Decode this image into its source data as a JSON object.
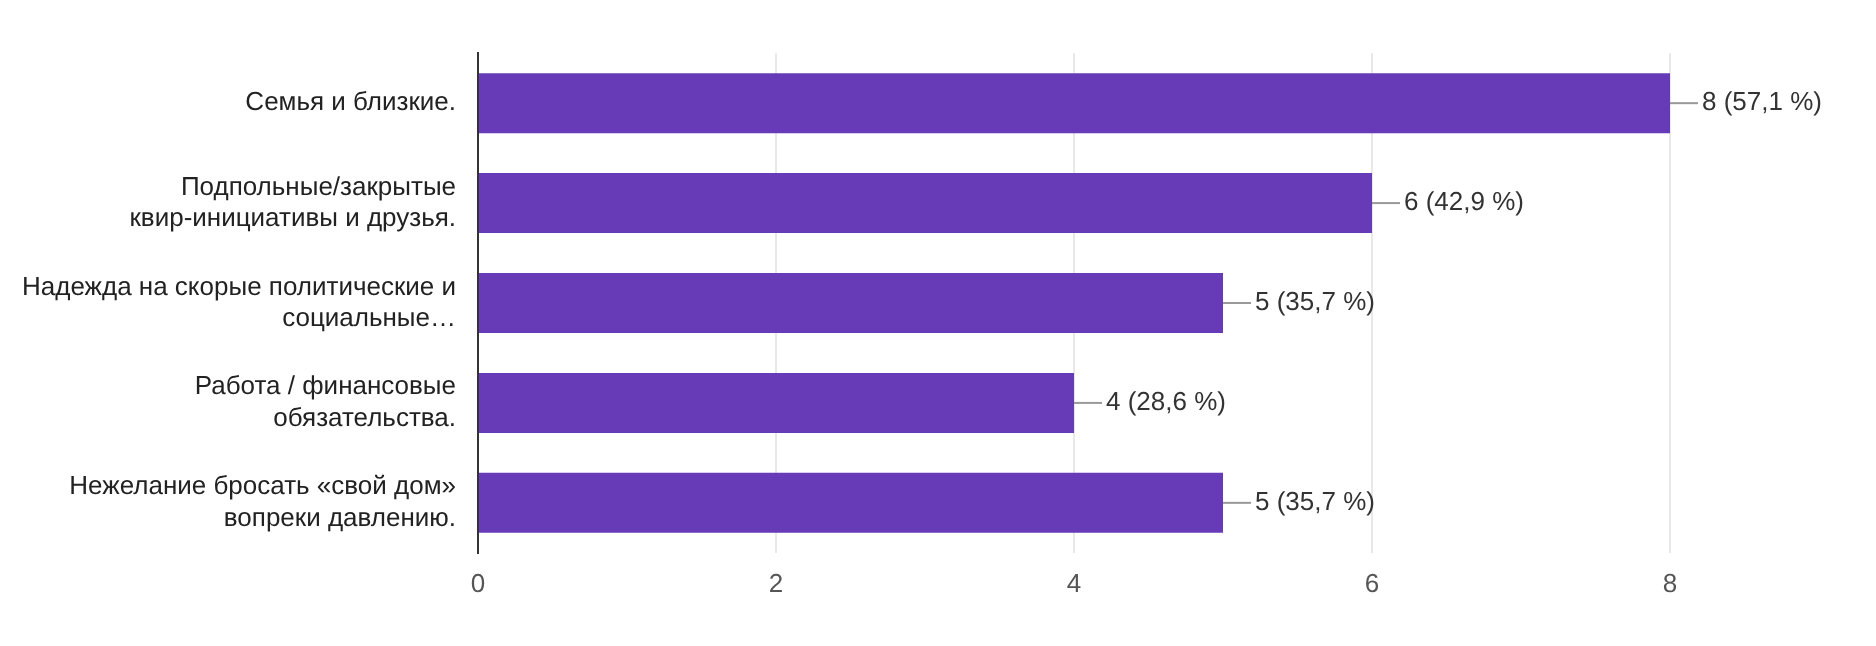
{
  "chart_data": {
    "type": "bar",
    "orientation": "horizontal",
    "categories": [
      "Семья и близкие.",
      "Подпольные/закрытые квир-инициативы и друзья.",
      "Надежда на скорые политические и социальные…",
      "Работа / финансовые обязательства.",
      "Нежелание бросать «свой дом» вопреки давлению."
    ],
    "values": [
      8,
      6,
      5,
      4,
      5
    ],
    "value_labels": [
      "8 (57,1 %)",
      "6 (42,9 %)",
      "5 (35,7 %)",
      "4 (28,6 %)",
      "5 (35,7 %)"
    ],
    "color": "#673ab7",
    "xlim": [
      0,
      8
    ],
    "xticks": [
      0,
      2,
      4,
      6,
      8
    ],
    "grid": "x"
  }
}
